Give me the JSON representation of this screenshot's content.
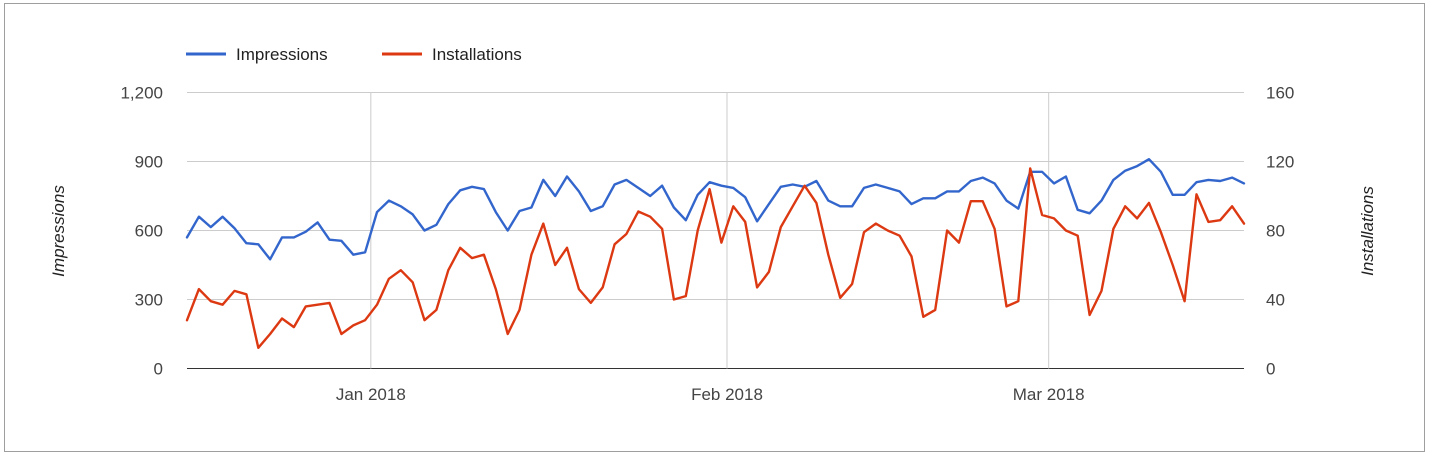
{
  "chart_data": {
    "type": "line",
    "title": "",
    "y_left_label": "Impressions",
    "y_right_label": "Installations",
    "ylim_left": [
      0,
      1200
    ],
    "ylim_right": [
      0,
      160
    ],
    "left_ticks": [
      "0",
      "300",
      "600",
      "900",
      "1,200"
    ],
    "right_ticks": [
      "0",
      "40",
      "80",
      "120",
      "160"
    ],
    "x_ticks": [
      "Jan 2018",
      "Feb 2018",
      "Mar 2018"
    ],
    "grid": true,
    "legend_position": "top-left",
    "dates_start": "2017-12-16",
    "dates_end": "2018-03-18",
    "series": [
      {
        "name": "Impressions",
        "axis": "left",
        "color": "#3366cc",
        "values": [
          570,
          660,
          615,
          660,
          610,
          545,
          540,
          475,
          570,
          570,
          595,
          635,
          560,
          555,
          495,
          505,
          680,
          730,
          705,
          670,
          600,
          625,
          715,
          775,
          790,
          780,
          680,
          600,
          685,
          700,
          820,
          750,
          835,
          770,
          685,
          705,
          800,
          820,
          785,
          750,
          795,
          700,
          645,
          755,
          810,
          795,
          785,
          745,
          640,
          715,
          790,
          800,
          790,
          815,
          730,
          705,
          705,
          785,
          800,
          785,
          770,
          715,
          740,
          740,
          770,
          770,
          815,
          830,
          805,
          730,
          695,
          855,
          855,
          805,
          835,
          690,
          675,
          730,
          820,
          860,
          880,
          910,
          855,
          755,
          755,
          810,
          820,
          815,
          830,
          805
        ]
      },
      {
        "name": "Installations",
        "axis": "right",
        "color": "#dc3912",
        "values": [
          28,
          46,
          39,
          37,
          45,
          43,
          12,
          20,
          29,
          24,
          36,
          37,
          38,
          20,
          25,
          28,
          37,
          52,
          57,
          50,
          28,
          34,
          57,
          70,
          64,
          66,
          46,
          20,
          34,
          66,
          84,
          60,
          70,
          46,
          38,
          47,
          72,
          78,
          91,
          88,
          81,
          40,
          42,
          80,
          104,
          73,
          94,
          85,
          47,
          56,
          82,
          94,
          106,
          96,
          66,
          41,
          49,
          79,
          84,
          80,
          77,
          65,
          30,
          34,
          80,
          73,
          97,
          97,
          81,
          36,
          39,
          116,
          89,
          87,
          80,
          77,
          31,
          45,
          81,
          94,
          87,
          96,
          79,
          60,
          39,
          101,
          85,
          86,
          94,
          84
        ]
      }
    ]
  }
}
